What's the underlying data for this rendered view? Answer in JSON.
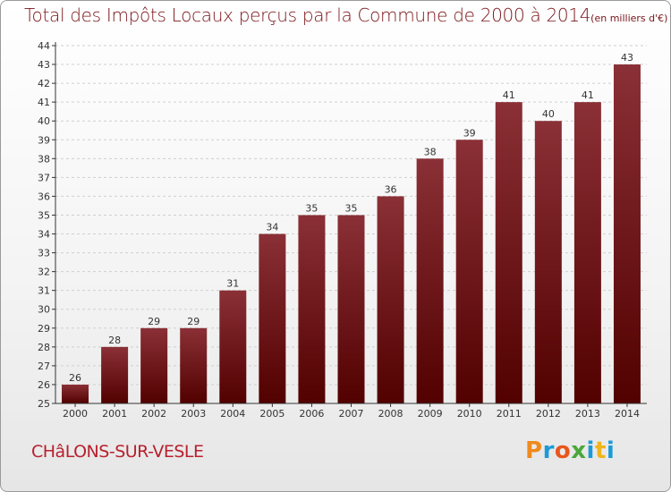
{
  "title": "Total des Impôts Locaux perçus par la Commune de 2000 à 2014",
  "unit_note": "(en milliers d'€)",
  "commune": "CHâLONS-SUR-VESLE",
  "brand": "Proxiti",
  "colors": {
    "title": "#7a1418",
    "commune": "#b8202e",
    "bar_top": "#8a3036",
    "bar_bottom": "#520000",
    "axis": "#333333",
    "grid": "#cfcfcf",
    "brand": [
      "#f08a1c",
      "#1a9bd7",
      "#e8561e",
      "#4aa839",
      "#1a9bd7",
      "#f0b41c",
      "#1a9bd7"
    ]
  },
  "chart_data": {
    "type": "bar",
    "title": "Total des Impôts Locaux perçus par la Commune de 2000 à 2014",
    "xlabel": "",
    "ylabel": "",
    "categories": [
      "2000",
      "2001",
      "2002",
      "2003",
      "2004",
      "2005",
      "2006",
      "2007",
      "2008",
      "2009",
      "2010",
      "2011",
      "2012",
      "2013",
      "2014"
    ],
    "values": [
      26,
      28,
      29,
      29,
      31,
      34,
      35,
      35,
      36,
      38,
      39,
      41,
      40,
      41,
      43
    ],
    "ylim": [
      25,
      44
    ],
    "yticks": [
      25,
      26,
      27,
      28,
      29,
      30,
      31,
      32,
      33,
      34,
      35,
      36,
      37,
      38,
      39,
      40,
      41,
      42,
      43,
      44
    ],
    "grid": true,
    "data_labels": true
  }
}
